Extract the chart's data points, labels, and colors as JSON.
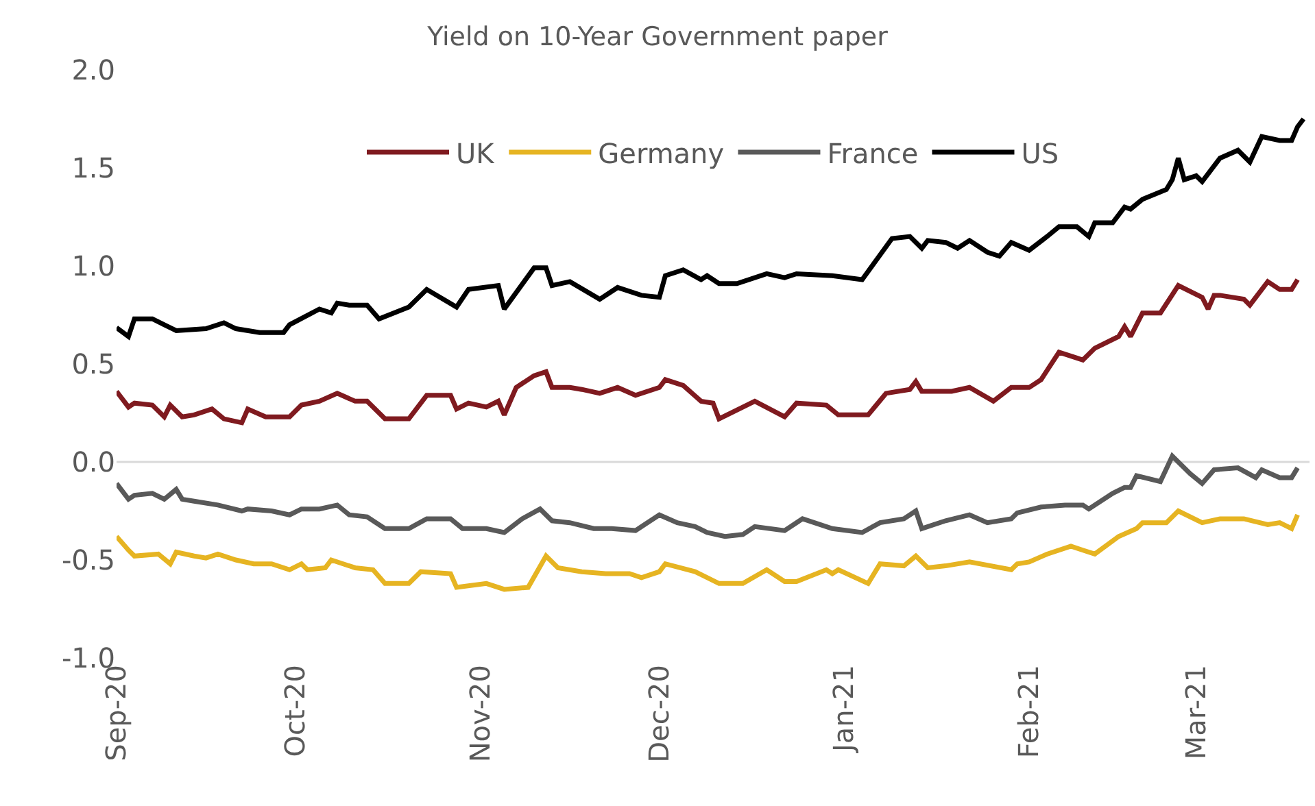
{
  "chart_data": {
    "type": "line",
    "title": "Yield on 10-Year Government paper",
    "xlim": [
      "2020-09-01",
      "2021-03-20"
    ],
    "xticks": [
      {
        "value": "2020-09-01",
        "label": "Sep-20"
      },
      {
        "value": "2020-10-01",
        "label": "Oct-20"
      },
      {
        "value": "2020-11-01",
        "label": "Nov-20"
      },
      {
        "value": "2020-12-01",
        "label": "Dec-20"
      },
      {
        "value": "2021-01-01",
        "label": "Jan-21"
      },
      {
        "value": "2021-02-01",
        "label": "Feb-21"
      },
      {
        "value": "2021-03-01",
        "label": "Mar-21"
      }
    ],
    "ylim": [
      -1.0,
      2.0
    ],
    "yticks": [
      {
        "value": -1.0,
        "label": "-1.0"
      },
      {
        "value": -0.5,
        "label": "-0.5"
      },
      {
        "value": 0,
        "label": "0.0"
      },
      {
        "value": 0.5,
        "label": "0.5"
      },
      {
        "value": 1.0,
        "label": "1.0"
      },
      {
        "value": 1.5,
        "label": "1.5"
      },
      {
        "value": 2.0,
        "label": "2.0"
      }
    ],
    "grid": false,
    "legend": "top",
    "marker": "none",
    "line_style": "solid",
    "ref_lines": [
      {
        "axis": "y",
        "value": 0,
        "color": "#d9d9d9"
      }
    ],
    "series": [
      {
        "name": "UK",
        "color": "#7f1a1f",
        "x": [
          "2020-09-01",
          "2020-09-03",
          "2020-09-04",
          "2020-09-07",
          "2020-09-09",
          "2020-09-10",
          "2020-09-12",
          "2020-09-14",
          "2020-09-17",
          "2020-09-19",
          "2020-09-22",
          "2020-09-23",
          "2020-09-26",
          "2020-09-30",
          "2020-10-02",
          "2020-10-05",
          "2020-10-08",
          "2020-10-11",
          "2020-10-13",
          "2020-10-16",
          "2020-10-20",
          "2020-10-23",
          "2020-10-27",
          "2020-10-28",
          "2020-10-30",
          "2020-11-02",
          "2020-11-04",
          "2020-11-05",
          "2020-11-07",
          "2020-11-10",
          "2020-11-12",
          "2020-11-13",
          "2020-11-16",
          "2020-11-18",
          "2020-11-21",
          "2020-11-24",
          "2020-11-27",
          "2020-12-01",
          "2020-12-02",
          "2020-12-05",
          "2020-12-08",
          "2020-12-10",
          "2020-12-11",
          "2020-12-17",
          "2020-12-22",
          "2020-12-24",
          "2020-12-29",
          "2020-12-31",
          "2021-01-05",
          "2021-01-08",
          "2021-01-12",
          "2021-01-13",
          "2021-01-14",
          "2021-01-19",
          "2021-01-22",
          "2021-01-26",
          "2021-01-29",
          "2021-02-01",
          "2021-02-03",
          "2021-02-06",
          "2021-02-09",
          "2021-02-10",
          "2021-02-12",
          "2021-02-16",
          "2021-02-17",
          "2021-02-18",
          "2021-02-20",
          "2021-02-23",
          "2021-02-26",
          "2021-03-02",
          "2021-03-03",
          "2021-03-04",
          "2021-03-05",
          "2021-03-09",
          "2021-03-10",
          "2021-03-13",
          "2021-03-15",
          "2021-03-17",
          "2021-03-18"
        ],
        "values": [
          0.36,
          0.28,
          0.3,
          0.29,
          0.23,
          0.29,
          0.23,
          0.24,
          0.27,
          0.22,
          0.2,
          0.27,
          0.23,
          0.23,
          0.29,
          0.31,
          0.35,
          0.31,
          0.31,
          0.22,
          0.22,
          0.34,
          0.34,
          0.27,
          0.3,
          0.28,
          0.31,
          0.24,
          0.38,
          0.44,
          0.46,
          0.38,
          0.38,
          0.37,
          0.35,
          0.38,
          0.34,
          0.38,
          0.42,
          0.39,
          0.31,
          0.3,
          0.22,
          0.31,
          0.23,
          0.3,
          0.29,
          0.24,
          0.24,
          0.35,
          0.37,
          0.41,
          0.36,
          0.36,
          0.38,
          0.31,
          0.38,
          0.38,
          0.42,
          0.56,
          0.53,
          0.52,
          0.58,
          0.64,
          0.69,
          0.64,
          0.76,
          0.76,
          0.9,
          0.84,
          0.78,
          0.85,
          0.85,
          0.83,
          0.8,
          0.92,
          0.88,
          0.88,
          0.93
        ]
      },
      {
        "name": "Germany",
        "color": "#e6b422",
        "x": [
          "2020-09-01",
          "2020-09-03",
          "2020-09-04",
          "2020-09-08",
          "2020-09-10",
          "2020-09-11",
          "2020-09-14",
          "2020-09-16",
          "2020-09-18",
          "2020-09-21",
          "2020-09-24",
          "2020-09-27",
          "2020-09-30",
          "2020-10-02",
          "2020-10-03",
          "2020-10-06",
          "2020-10-07",
          "2020-10-11",
          "2020-10-14",
          "2020-10-16",
          "2020-10-20",
          "2020-10-22",
          "2020-10-27",
          "2020-10-28",
          "2020-11-02",
          "2020-11-05",
          "2020-11-09",
          "2020-11-12",
          "2020-11-14",
          "2020-11-18",
          "2020-11-22",
          "2020-11-26",
          "2020-11-28",
          "2020-12-01",
          "2020-12-02",
          "2020-12-07",
          "2020-12-11",
          "2020-12-15",
          "2020-12-19",
          "2020-12-22",
          "2020-12-24",
          "2020-12-29",
          "2020-12-30",
          "2020-12-31",
          "2021-01-05",
          "2021-01-07",
          "2021-01-11",
          "2021-01-13",
          "2021-01-15",
          "2021-01-18",
          "2021-01-22",
          "2021-01-29",
          "2021-01-30",
          "2021-02-01",
          "2021-02-04",
          "2021-02-08",
          "2021-02-10",
          "2021-02-12",
          "2021-02-16",
          "2021-02-19",
          "2021-02-20",
          "2021-02-24",
          "2021-02-26",
          "2021-03-02",
          "2021-03-05",
          "2021-03-09",
          "2021-03-13",
          "2021-03-15",
          "2021-03-17",
          "2021-03-18"
        ],
        "values": [
          -0.38,
          -0.45,
          -0.48,
          -0.47,
          -0.52,
          -0.46,
          -0.48,
          -0.49,
          -0.47,
          -0.5,
          -0.52,
          -0.52,
          -0.55,
          -0.52,
          -0.55,
          -0.54,
          -0.5,
          -0.54,
          -0.55,
          -0.62,
          -0.62,
          -0.56,
          -0.57,
          -0.64,
          -0.62,
          -0.65,
          -0.64,
          -0.48,
          -0.54,
          -0.56,
          -0.57,
          -0.57,
          -0.59,
          -0.56,
          -0.52,
          -0.56,
          -0.62,
          -0.62,
          -0.55,
          -0.61,
          -0.61,
          -0.55,
          -0.57,
          -0.55,
          -0.62,
          -0.52,
          -0.53,
          -0.48,
          -0.54,
          -0.53,
          -0.51,
          -0.55,
          -0.52,
          -0.51,
          -0.47,
          -0.43,
          -0.45,
          -0.47,
          -0.38,
          -0.34,
          -0.31,
          -0.31,
          -0.25,
          -0.31,
          -0.29,
          -0.29,
          -0.32,
          -0.31,
          -0.34,
          -0.27
        ]
      },
      {
        "name": "France",
        "color": "#595959",
        "x": [
          "2020-09-01",
          "2020-09-03",
          "2020-09-04",
          "2020-09-07",
          "2020-09-09",
          "2020-09-11",
          "2020-09-12",
          "2020-09-14",
          "2020-09-18",
          "2020-09-22",
          "2020-09-23",
          "2020-09-27",
          "2020-09-30",
          "2020-10-02",
          "2020-10-05",
          "2020-10-08",
          "2020-10-10",
          "2020-10-13",
          "2020-10-16",
          "2020-10-20",
          "2020-10-23",
          "2020-10-27",
          "2020-10-29",
          "2020-11-02",
          "2020-11-05",
          "2020-11-08",
          "2020-11-11",
          "2020-11-13",
          "2020-11-16",
          "2020-11-20",
          "2020-11-23",
          "2020-11-27",
          "2020-12-01",
          "2020-12-04",
          "2020-12-07",
          "2020-12-09",
          "2020-12-12",
          "2020-12-15",
          "2020-12-17",
          "2020-12-22",
          "2020-12-25",
          "2020-12-30",
          "2021-01-04",
          "2021-01-07",
          "2021-01-11",
          "2021-01-13",
          "2021-01-14",
          "2021-01-18",
          "2021-01-22",
          "2021-01-25",
          "2021-01-29",
          "2021-01-30",
          "2021-02-03",
          "2021-02-07",
          "2021-02-10",
          "2021-02-11",
          "2021-02-15",
          "2021-02-17",
          "2021-02-18",
          "2021-02-19",
          "2021-02-23",
          "2021-02-25",
          "2021-02-28",
          "2021-03-02",
          "2021-03-04",
          "2021-03-08",
          "2021-03-11",
          "2021-03-12",
          "2021-03-15",
          "2021-03-17",
          "2021-03-18"
        ],
        "values": [
          -0.11,
          -0.19,
          -0.17,
          -0.16,
          -0.19,
          -0.14,
          -0.19,
          -0.2,
          -0.22,
          -0.25,
          -0.24,
          -0.25,
          -0.27,
          -0.24,
          -0.24,
          -0.22,
          -0.27,
          -0.28,
          -0.34,
          -0.34,
          -0.29,
          -0.29,
          -0.34,
          -0.34,
          -0.36,
          -0.29,
          -0.24,
          -0.3,
          -0.31,
          -0.34,
          -0.34,
          -0.35,
          -0.27,
          -0.31,
          -0.33,
          -0.36,
          -0.38,
          -0.37,
          -0.33,
          -0.35,
          -0.29,
          -0.34,
          -0.36,
          -0.31,
          -0.29,
          -0.25,
          -0.34,
          -0.3,
          -0.27,
          -0.31,
          -0.29,
          -0.26,
          -0.23,
          -0.22,
          -0.22,
          -0.24,
          -0.16,
          -0.13,
          -0.13,
          -0.07,
          -0.1,
          0.03,
          -0.06,
          -0.11,
          -0.04,
          -0.03,
          -0.08,
          -0.04,
          -0.08,
          -0.08,
          -0.03
        ]
      },
      {
        "name": "US",
        "color": "#000000",
        "x": [
          "2020-09-01",
          "2020-09-03",
          "2020-09-04",
          "2020-09-07",
          "2020-09-09",
          "2020-09-11",
          "2020-09-16",
          "2020-09-19",
          "2020-09-21",
          "2020-09-25",
          "2020-09-29",
          "2020-09-30",
          "2020-10-05",
          "2020-10-07",
          "2020-10-08",
          "2020-10-10",
          "2020-10-13",
          "2020-10-15",
          "2020-10-20",
          "2020-10-23",
          "2020-10-28",
          "2020-10-30",
          "2020-11-04",
          "2020-11-05",
          "2020-11-10",
          "2020-11-12",
          "2020-11-13",
          "2020-11-16",
          "2020-11-21",
          "2020-11-24",
          "2020-11-28",
          "2020-12-01",
          "2020-12-02",
          "2020-12-05",
          "2020-12-08",
          "2020-12-09",
          "2020-12-11",
          "2020-12-14",
          "2020-12-19",
          "2020-12-22",
          "2020-12-24",
          "2020-12-30",
          "2021-01-04",
          "2021-01-09",
          "2021-01-12",
          "2021-01-14",
          "2021-01-15",
          "2021-01-18",
          "2021-01-20",
          "2021-01-22",
          "2021-01-25",
          "2021-01-27",
          "2021-01-29",
          "2021-02-01",
          "2021-02-04",
          "2021-02-06",
          "2021-02-09",
          "2021-02-11",
          "2021-02-12",
          "2021-02-15",
          "2021-02-17",
          "2021-02-18",
          "2021-02-20",
          "2021-02-24",
          "2021-02-25",
          "2021-02-26",
          "2021-02-27",
          "2021-03-01",
          "2021-03-02",
          "2021-03-05",
          "2021-03-08",
          "2021-03-10",
          "2021-03-12",
          "2021-03-15",
          "2021-03-17",
          "2021-03-18",
          "2021-03-19"
        ],
        "values": [
          0.685,
          0.64,
          0.73,
          0.73,
          0.7,
          0.67,
          0.68,
          0.71,
          0.68,
          0.66,
          0.66,
          0.7,
          0.78,
          0.76,
          0.81,
          0.8,
          0.8,
          0.73,
          0.79,
          0.88,
          0.79,
          0.88,
          0.9,
          0.78,
          0.99,
          0.99,
          0.9,
          0.92,
          0.83,
          0.89,
          0.85,
          0.84,
          0.95,
          0.98,
          0.93,
          0.95,
          0.91,
          0.91,
          0.96,
          0.94,
          0.96,
          0.95,
          0.93,
          1.14,
          1.15,
          1.09,
          1.13,
          1.12,
          1.09,
          1.13,
          1.07,
          1.05,
          1.12,
          1.08,
          1.15,
          1.2,
          1.2,
          1.15,
          1.22,
          1.22,
          1.3,
          1.29,
          1.34,
          1.39,
          1.44,
          1.55,
          1.44,
          1.46,
          1.43,
          1.55,
          1.59,
          1.53,
          1.66,
          1.64,
          1.64,
          1.71,
          1.75
        ]
      }
    ]
  }
}
